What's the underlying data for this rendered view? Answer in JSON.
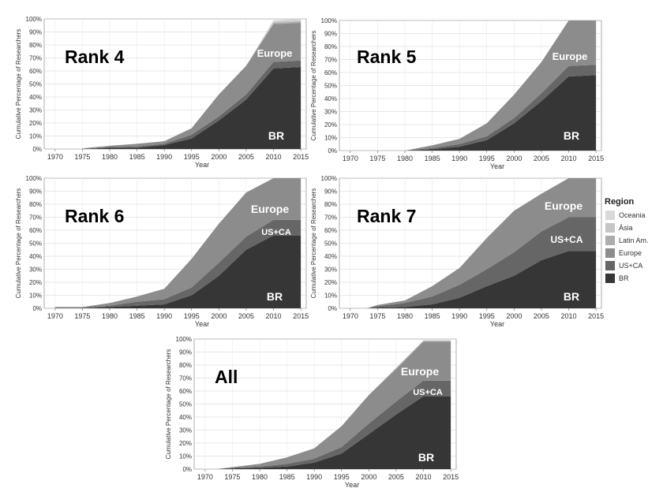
{
  "legend": {
    "title": "Region",
    "items": [
      {
        "label": "Oceania",
        "color": "#d9d9d9"
      },
      {
        "label": "Ásia",
        "color": "#c6c6c6"
      },
      {
        "label": "Latin Am.",
        "color": "#adadad"
      },
      {
        "label": "Europe",
        "color": "#8c8c8c"
      },
      {
        "label": "US+CA",
        "color": "#666666"
      },
      {
        "label": "BR",
        "color": "#363636"
      }
    ]
  },
  "chart_data": [
    {
      "type": "area",
      "panel_title": "Rank 4",
      "xlabel": "Year",
      "ylabel": "Cumulative Percentage of Researchers",
      "xlim": [
        1968,
        2016
      ],
      "ylim": [
        0,
        100
      ],
      "xticks": [
        1970,
        1975,
        1980,
        1985,
        1990,
        1995,
        2000,
        2005,
        2010,
        2015
      ],
      "yticks": [
        0,
        10,
        20,
        30,
        40,
        50,
        60,
        70,
        80,
        90,
        100
      ],
      "x": [
        1975,
        1980,
        1985,
        1990,
        1995,
        2000,
        2005,
        2010,
        2015
      ],
      "series": [
        {
          "name": "BR",
          "values": [
            0,
            1,
            1,
            3,
            8,
            22,
            38,
            62,
            63
          ]
        },
        {
          "name": "US+CA",
          "values": [
            0,
            0.5,
            1,
            1,
            3,
            3,
            4,
            5,
            5
          ]
        },
        {
          "name": "Europe",
          "values": [
            0.5,
            1,
            2,
            2,
            5,
            17,
            22,
            29,
            29
          ]
        },
        {
          "name": "Latin Am.",
          "values": [
            0,
            0,
            0,
            0,
            0,
            0,
            0,
            1,
            1
          ]
        },
        {
          "name": "Ásia",
          "values": [
            0,
            0,
            0,
            0,
            0,
            0,
            0,
            1,
            1
          ]
        },
        {
          "name": "Oceania",
          "values": [
            0,
            0,
            0,
            0,
            0,
            0,
            0,
            1,
            1
          ]
        }
      ],
      "annotations": [
        "Europe",
        "BR"
      ]
    },
    {
      "type": "area",
      "panel_title": "Rank 5",
      "xlabel": "Year",
      "ylabel": "Cumulative Percentage of Researchers",
      "xlim": [
        1968,
        2016
      ],
      "ylim": [
        0,
        100
      ],
      "xticks": [
        1970,
        1975,
        1980,
        1985,
        1990,
        1995,
        2000,
        2005,
        2010,
        2015
      ],
      "yticks": [
        0,
        10,
        20,
        30,
        40,
        50,
        60,
        70,
        80,
        90,
        100
      ],
      "x": [
        1975,
        1980,
        1985,
        1990,
        1995,
        2000,
        2005,
        2010,
        2015
      ],
      "series": [
        {
          "name": "BR",
          "values": [
            0,
            0,
            1,
            3,
            8,
            21,
            38,
            57,
            58
          ]
        },
        {
          "name": "US+CA",
          "values": [
            0,
            0,
            1,
            2,
            3,
            4,
            6,
            8,
            8
          ]
        },
        {
          "name": "Europe",
          "values": [
            0,
            0,
            2,
            4,
            10,
            18,
            24,
            35,
            34
          ]
        },
        {
          "name": "Latin Am.",
          "values": [
            0,
            0,
            0,
            0,
            0,
            0,
            0,
            0,
            0
          ]
        },
        {
          "name": "Ásia",
          "values": [
            0,
            0,
            0,
            0,
            0,
            0,
            0,
            0,
            0
          ]
        },
        {
          "name": "Oceania",
          "values": [
            0,
            0,
            0,
            0,
            0,
            0,
            0,
            0,
            0
          ]
        }
      ],
      "annotations": [
        "Europe",
        "BR"
      ]
    },
    {
      "type": "area",
      "panel_title": "Rank 6",
      "xlabel": "Year",
      "ylabel": "Cumulative Percentage of Researchers",
      "xlim": [
        1968,
        2016
      ],
      "ylim": [
        0,
        100
      ],
      "xticks": [
        1970,
        1975,
        1980,
        1985,
        1990,
        1995,
        2000,
        2005,
        2010,
        2015
      ],
      "yticks": [
        0,
        10,
        20,
        30,
        40,
        50,
        60,
        70,
        80,
        90,
        100
      ],
      "x": [
        1970,
        1975,
        1980,
        1985,
        1990,
        1995,
        2000,
        2005,
        2010,
        2015
      ],
      "series": [
        {
          "name": "BR",
          "values": [
            0,
            0,
            1,
            2,
            3,
            10,
            25,
            45,
            56,
            56
          ]
        },
        {
          "name": "US+CA",
          "values": [
            0.5,
            0.5,
            1,
            3,
            4,
            6,
            10,
            10,
            12,
            12
          ]
        },
        {
          "name": "Europe",
          "values": [
            0.5,
            0.5,
            2,
            4,
            8,
            22,
            30,
            34,
            32,
            32
          ]
        },
        {
          "name": "Latin Am.",
          "values": [
            0,
            0,
            0,
            0,
            0,
            0,
            0,
            0,
            0,
            0
          ]
        },
        {
          "name": "Ásia",
          "values": [
            0,
            0,
            0,
            0,
            0,
            0,
            0,
            0,
            0,
            0
          ]
        },
        {
          "name": "Oceania",
          "values": [
            0,
            0,
            0,
            0,
            0,
            0,
            0,
            0,
            0,
            0
          ]
        }
      ],
      "annotations": [
        "Europe",
        "US+CA",
        "BR"
      ]
    },
    {
      "type": "area",
      "panel_title": "Rank 7",
      "xlabel": "Year",
      "ylabel": "Cumulative Percentage of Researchers",
      "xlim": [
        1968,
        2016
      ],
      "ylim": [
        0,
        100
      ],
      "xticks": [
        1970,
        1975,
        1980,
        1985,
        1990,
        1995,
        2000,
        2005,
        2010,
        2015
      ],
      "yticks": [
        0,
        10,
        20,
        30,
        40,
        50,
        60,
        70,
        80,
        90,
        100
      ],
      "x": [
        1973,
        1975,
        1980,
        1985,
        1990,
        1995,
        2000,
        2005,
        2010,
        2015
      ],
      "series": [
        {
          "name": "BR",
          "values": [
            0,
            0.5,
            1,
            3,
            8,
            17,
            25,
            37,
            44,
            44
          ]
        },
        {
          "name": "US+CA",
          "values": [
            0,
            1,
            3,
            6,
            10,
            13,
            18,
            22,
            26,
            26
          ]
        },
        {
          "name": "Europe",
          "values": [
            0,
            1,
            2,
            8,
            13,
            24,
            32,
            29,
            30,
            30
          ]
        },
        {
          "name": "Latin Am.",
          "values": [
            0,
            0,
            0,
            0,
            0,
            0,
            0,
            0,
            0,
            0
          ]
        },
        {
          "name": "Ásia",
          "values": [
            0,
            0,
            0,
            0,
            0,
            0,
            0,
            0,
            0,
            0
          ]
        },
        {
          "name": "Oceania",
          "values": [
            0,
            0,
            0,
            0,
            0,
            0,
            0,
            0,
            0,
            0
          ]
        }
      ],
      "annotations": [
        "Europe",
        "US+CA",
        "BR"
      ]
    },
    {
      "type": "area",
      "panel_title": "All",
      "xlabel": "Year",
      "ylabel": "Cumulative Percentage of Researchers",
      "xlim": [
        1968,
        2016
      ],
      "ylim": [
        0,
        100
      ],
      "xticks": [
        1970,
        1975,
        1980,
        1985,
        1990,
        1995,
        2000,
        2005,
        2010,
        2015
      ],
      "yticks": [
        0,
        10,
        20,
        30,
        40,
        50,
        60,
        70,
        80,
        90,
        100
      ],
      "x": [
        1972,
        1975,
        1980,
        1985,
        1990,
        1995,
        2000,
        2005,
        2010,
        2015
      ],
      "series": [
        {
          "name": "BR",
          "values": [
            0,
            0.5,
            1,
            2,
            5,
            12,
            27,
            42,
            56,
            56
          ]
        },
        {
          "name": "US+CA",
          "values": [
            0,
            0.5,
            1,
            2,
            3,
            5,
            8,
            10,
            12,
            12
          ]
        },
        {
          "name": "Europe",
          "values": [
            0,
            0.5,
            2,
            5,
            8,
            16,
            22,
            25,
            30,
            30
          ]
        },
        {
          "name": "Latin Am.",
          "values": [
            0,
            0,
            0,
            0,
            0,
            0,
            0,
            0.5,
            0.5,
            0.5
          ]
        },
        {
          "name": "Ásia",
          "values": [
            0,
            0,
            0,
            0,
            0,
            0,
            0,
            0.5,
            0.5,
            0.5
          ]
        },
        {
          "name": "Oceania",
          "values": [
            0,
            0,
            0,
            0,
            0,
            0,
            0,
            0,
            0,
            0
          ]
        }
      ],
      "annotations": [
        "Europe",
        "US+CA",
        "BR"
      ]
    }
  ]
}
